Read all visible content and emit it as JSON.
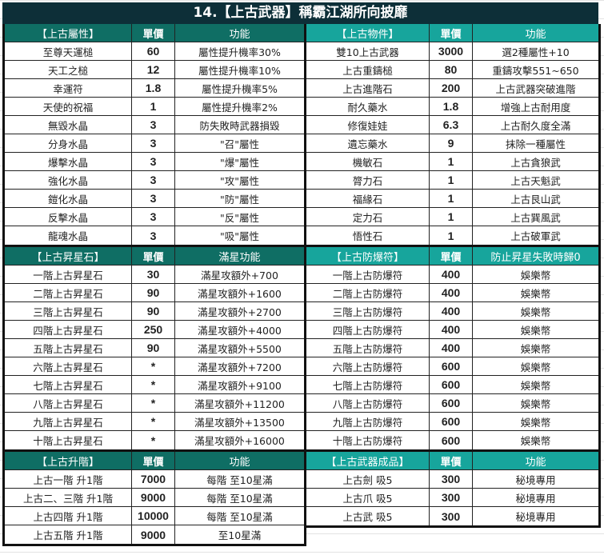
{
  "title": "14.【上古武器】稱霸江湖所向披靡",
  "colors": {
    "title_bg": "#0d2f38",
    "left_header": "#0f6e64",
    "right_header": "#17a59c"
  },
  "left": [
    {
      "header": [
        "【上古屬性】",
        "單價",
        "功能"
      ],
      "rows": [
        [
          "至尊天運槌",
          "60",
          "屬性提升機率30%"
        ],
        [
          "天工之槌",
          "12",
          "屬性提升機率10%"
        ],
        [
          "幸運符",
          "1.8",
          "屬性提升機率5%"
        ],
        [
          "天使的祝福",
          "1",
          "屬性提升機率2%"
        ],
        [
          "無毀水晶",
          "3",
          "防失敗時武器損毀"
        ],
        [
          "分身水晶",
          "3",
          "\"召\"屬性"
        ],
        [
          "爆擊水晶",
          "3",
          "\"爆\"屬性"
        ],
        [
          "強化水晶",
          "3",
          "\"攻\"屬性"
        ],
        [
          "鎧化水晶",
          "3",
          "\"防\"屬性"
        ],
        [
          "反擊水晶",
          "3",
          "\"反\"屬性"
        ],
        [
          "龍魂水晶",
          "3",
          "\"吸\"屬性"
        ]
      ]
    },
    {
      "header": [
        "【上古昇星石】",
        "單價",
        "滿星功能"
      ],
      "rows": [
        [
          "一階上古昇星石",
          "30",
          "滿星攻額外+700"
        ],
        [
          "二階上古昇星石",
          "90",
          "滿星攻額外+1600"
        ],
        [
          "三階上古昇星石",
          "90",
          "滿星攻額外+2700"
        ],
        [
          "四階上古昇星石",
          "250",
          "滿星攻額外+4000"
        ],
        [
          "五階上古昇星石",
          "90",
          "滿星攻額外+5500"
        ],
        [
          "六階上古昇星石",
          "*",
          "滿星攻額外+7200"
        ],
        [
          "七階上古昇星石",
          "*",
          "滿星攻額外+9100"
        ],
        [
          "八階上古昇星石",
          "*",
          "滿星攻額外+11200"
        ],
        [
          "九階上古昇星石",
          "*",
          "滿星攻額外+13500"
        ],
        [
          "十階上古昇星石",
          "*",
          "滿星攻額外+16000"
        ]
      ]
    },
    {
      "header": [
        "【上古升階】",
        "單價",
        "功能"
      ],
      "rows": [
        [
          "上古一階 升1階",
          "7000",
          "每階 至10星滿"
        ],
        [
          "上古二、三階 升1階",
          "9000",
          "每階 至10星滿"
        ],
        [
          "上古四階 升1階",
          "10000",
          "每階 至10星滿"
        ],
        [
          "上古五階 升1階",
          "9000",
          "至10星滿"
        ]
      ]
    }
  ],
  "right": [
    {
      "header": [
        "【上古物件】",
        "單價",
        "功能"
      ],
      "rows": [
        [
          "雙10上古武器",
          "3000",
          "選2種屬性+10"
        ],
        [
          "上古重鑄槌",
          "80",
          "重鑄攻擊551~650"
        ],
        [
          "上古進階石",
          "200",
          "上古武器突破進階"
        ],
        [
          "耐久藥水",
          "1.8",
          "增強上古耐用度"
        ],
        [
          "修復娃娃",
          "6.3",
          "上古耐久度全滿"
        ],
        [
          "遺忘藥水",
          "9",
          "抹除一種屬性"
        ],
        [
          "機敏石",
          "1",
          "上古貪狼武"
        ],
        [
          "膂力石",
          "1",
          "上古天魁武"
        ],
        [
          "福緣石",
          "1",
          "上古艮山武"
        ],
        [
          "定力石",
          "1",
          "上古巽風武"
        ],
        [
          "悟性石",
          "1",
          "上古破軍武"
        ]
      ]
    },
    {
      "header": [
        "【上古防爆符】",
        "單價",
        "防止昇星失敗時歸0"
      ],
      "rows": [
        [
          "一階上古防爆符",
          "400",
          "娛樂幣"
        ],
        [
          "二階上古防爆符",
          "400",
          "娛樂幣"
        ],
        [
          "三階上古防爆符",
          "400",
          "娛樂幣"
        ],
        [
          "四階上古防爆符",
          "400",
          "娛樂幣"
        ],
        [
          "五階上古防爆符",
          "400",
          "娛樂幣"
        ],
        [
          "六階上古防爆符",
          "600",
          "娛樂幣"
        ],
        [
          "七階上古防爆符",
          "600",
          "娛樂幣"
        ],
        [
          "八階上古防爆符",
          "600",
          "娛樂幣"
        ],
        [
          "九階上古防爆符",
          "600",
          "娛樂幣"
        ],
        [
          "十階上古防爆符",
          "600",
          "娛樂幣"
        ]
      ]
    },
    {
      "header": [
        "【上古武器成品】",
        "單價",
        "功能"
      ],
      "rows": [
        [
          "上古劍 吸5",
          "300",
          "秘境專用"
        ],
        [
          "上古爪 吸5",
          "300",
          "秘境專用"
        ],
        [
          "上古武 吸5",
          "300",
          "秘境專用"
        ]
      ]
    }
  ]
}
